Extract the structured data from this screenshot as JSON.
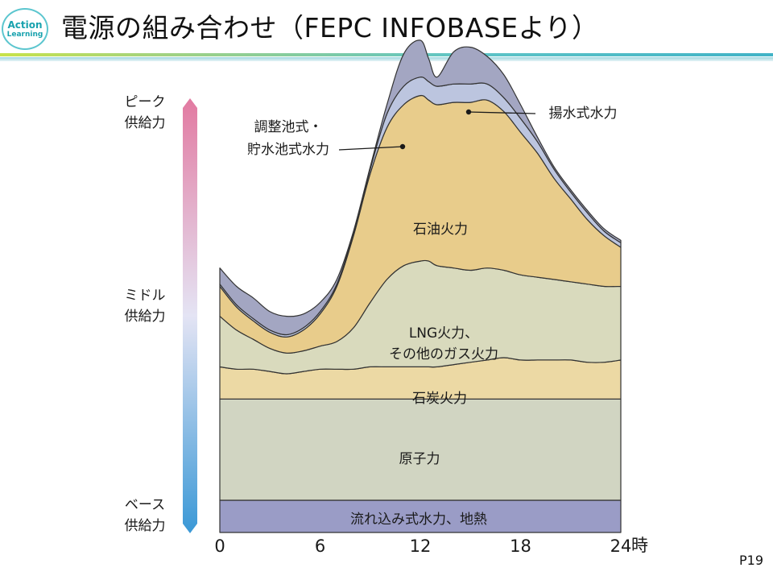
{
  "header": {
    "title": "電源の組み合わせ（FEPC INFOBASEより）",
    "logo_line1": "Action",
    "logo_line2": "Learning"
  },
  "footer": {
    "page_number": "P19"
  },
  "colors": {
    "pumped": "#a3a6c2",
    "storage": "#bcc5df",
    "oil": "#e8cc8b",
    "lng": "#d9dabd",
    "coal": "#ecd9a4",
    "nuclear": "#d1d5c2",
    "hydro": "#9a9cc6",
    "gradient_top": "#e27aa1",
    "gradient_mid": "#e4e4f4",
    "gradient_bottom": "#3a98d6"
  },
  "chart_data": {
    "type": "area",
    "title": "",
    "xlabel": "時",
    "ylabel": "",
    "x_ticks": [
      "0",
      "6",
      "12",
      "18",
      "24"
    ],
    "xlim": [
      0,
      24
    ],
    "ylim": [
      0,
      100
    ],
    "grid": false,
    "y_axis_labels": {
      "peak_line1": "ピーク",
      "peak_line2": "供給力",
      "middle_line1": "ミドル",
      "middle_line2": "供給力",
      "base_line1": "ベース",
      "base_line2": "供給力"
    },
    "x": [
      0,
      1,
      2,
      3,
      4,
      5,
      6,
      7,
      8,
      9,
      10,
      11,
      12,
      12.5,
      13,
      14,
      15,
      16,
      17,
      18,
      19,
      20,
      21,
      22,
      23,
      24
    ],
    "series": [
      {
        "name": "流れ込み式水力、地熱",
        "label": "流れ込み式水力、地熱",
        "values": [
          7,
          7,
          7,
          7,
          7,
          7,
          7,
          7,
          7,
          7,
          7,
          7,
          7,
          7,
          7,
          7,
          7,
          7,
          7,
          7,
          7,
          7,
          7,
          7,
          7,
          7
        ]
      },
      {
        "name": "原子力",
        "label": "原子力",
        "values": [
          22,
          22,
          22,
          22,
          22,
          22,
          22,
          22,
          22,
          22,
          22,
          22,
          22,
          22,
          22,
          22,
          22,
          22,
          22,
          22,
          22,
          22,
          22,
          22,
          22,
          22
        ]
      },
      {
        "name": "石炭火力",
        "label": "石炭火力",
        "values": [
          7,
          6.5,
          6.5,
          6,
          5.5,
          6,
          6.5,
          6.5,
          6.5,
          7,
          7,
          7,
          7,
          7,
          7,
          7.5,
          8,
          8.5,
          9,
          8.5,
          8.5,
          8.5,
          8.5,
          8,
          8,
          8.5
        ]
      },
      {
        "name": "LNG火力、その他のガス火力",
        "label_line1": "LNG火力、",
        "label_line2": "その他のガス火力",
        "values": [
          11,
          8.5,
          6.5,
          5,
          4.5,
          4.5,
          5,
          6,
          9,
          14,
          19,
          22,
          23,
          23,
          22,
          21,
          20,
          20,
          19,
          18.5,
          18,
          17.5,
          17,
          17,
          16.5,
          16
        ]
      },
      {
        "name": "石油火力",
        "label": "石油火力",
        "values": [
          6.5,
          5,
          4,
          3.5,
          3.5,
          4.5,
          7,
          12,
          20,
          28,
          33,
          35,
          36,
          35,
          35,
          36,
          36.5,
          36.5,
          34.5,
          31,
          27,
          22,
          18,
          14,
          11,
          8.5
        ]
      },
      {
        "name": "調整池式・貯水池式水力",
        "label_line1": "調整池式・",
        "label_line2": "貯水池式水力",
        "values": [
          0.5,
          0.5,
          0.5,
          0.5,
          0.5,
          0.5,
          0.5,
          0.5,
          0.5,
          1,
          3,
          4,
          4,
          4,
          4,
          4,
          4,
          3.5,
          3,
          3,
          2.5,
          2,
          1.5,
          1.5,
          1,
          1
        ]
      },
      {
        "name": "揚水式水力",
        "label": "揚水式水力",
        "values": [
          3.5,
          4,
          4.5,
          4,
          4,
          3,
          2,
          1,
          0.5,
          0.5,
          2,
          7,
          8,
          5,
          2,
          7,
          8,
          6,
          5,
          3,
          1,
          0.5,
          0.5,
          0.5,
          0.5,
          0.5
        ]
      }
    ]
  }
}
